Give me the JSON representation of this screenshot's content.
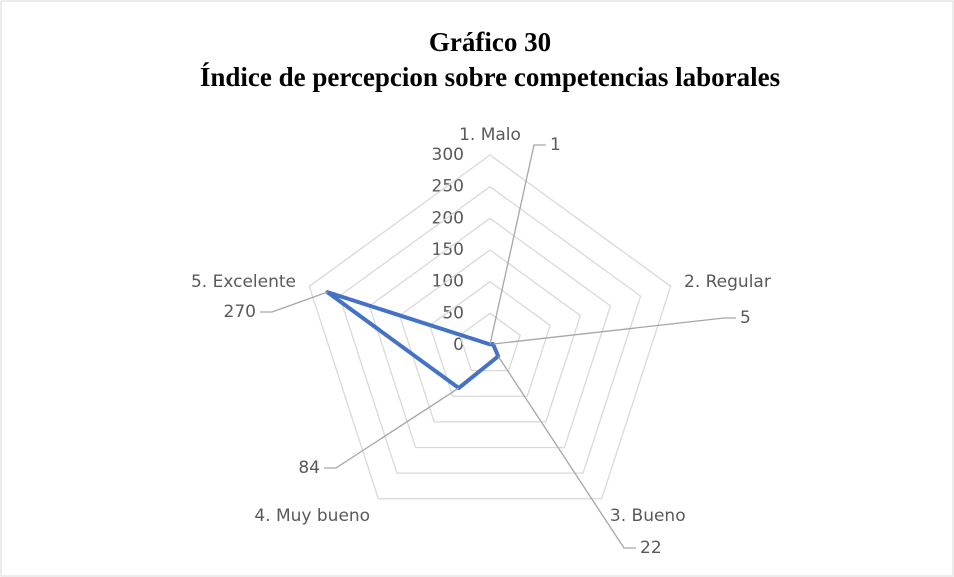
{
  "chart_data": {
    "type": "radar",
    "title": [
      "Gráfico 30",
      "Índice de percepcion sobre competencias laborales"
    ],
    "categories": [
      "1. Malo",
      "2. Regular",
      "3. Bueno",
      "4. Muy bueno",
      "5. Excelente"
    ],
    "values": [
      1,
      5,
      22,
      84,
      270
    ],
    "color": "#4472c4",
    "ylim": [
      0,
      300
    ],
    "yticks": [
      0,
      50,
      100,
      150,
      200,
      250,
      300
    ],
    "grid": true
  }
}
